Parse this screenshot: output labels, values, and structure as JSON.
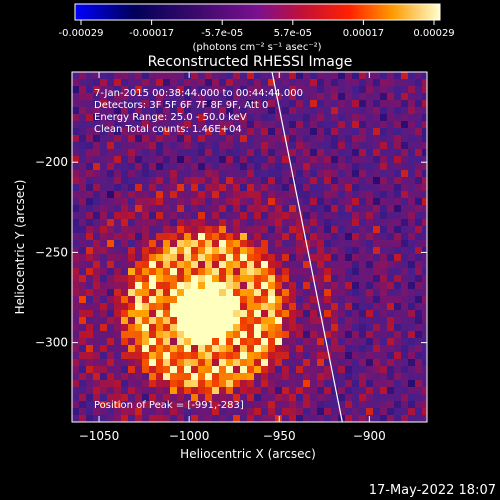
{
  "colorbar": {
    "tick_labels": [
      "-0.00029",
      "-0.00017",
      "-5.7e-05",
      "5.7e-05",
      "0.00017",
      "0.00029"
    ],
    "units_label": "(photons cm⁻² s⁻¹ asec⁻²)"
  },
  "chart_data": {
    "type": "heatmap",
    "title": "Reconstructed RHESSI Image",
    "xlabel": "Heliocentric X (arcsec)",
    "ylabel": "Heliocentric Y (arcsec)",
    "xlim": [
      -1065,
      -868
    ],
    "ylim": [
      -344,
      -150
    ],
    "x_ticks": [
      -1050,
      -1000,
      -950,
      -900
    ],
    "y_ticks": [
      -200,
      -250,
      -300
    ],
    "x_tick_labels": [
      "−1050",
      "−1000",
      "−950",
      "−900"
    ],
    "y_tick_labels": [
      "−200",
      "−250",
      "−300"
    ],
    "color_range": [
      -0.00029,
      0.00029
    ],
    "annotations": [
      "7-Jan-2015 00:38:44.000 to 00:44:44.000",
      "Detectors: 3F 5F 6F 7F 8F 9F, Att 0",
      "Energy Range: 25.0 - 50.0 keV",
      "Clean     Total counts: 1.46E+04"
    ],
    "peak_label": "Position of Peak = [-991,-283]",
    "peak_position": [
      -991,
      -283
    ],
    "limb_line": [
      [
        -954,
        -150
      ],
      [
        -915,
        -344
      ]
    ],
    "footer_date": "17-May-2022 18:07"
  }
}
